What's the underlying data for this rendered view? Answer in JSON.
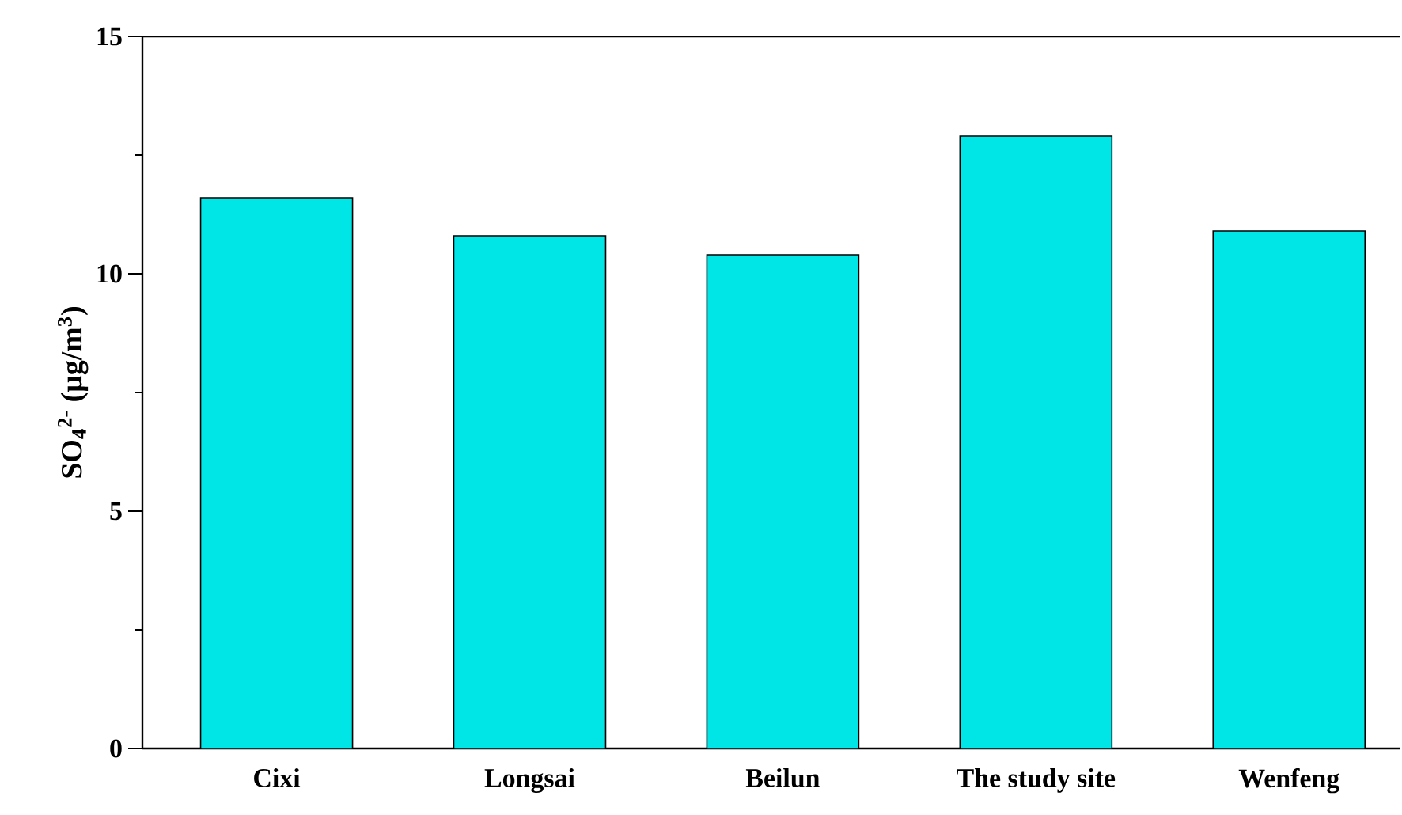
{
  "chart_data": {
    "type": "bar",
    "ylabel": "SO$_{4}$$^{2-}$ (μg/m$^{3}$)",
    "categories": [
      "Cixi",
      "Longsai",
      "Beilun",
      "The study site",
      "Wenfeng"
    ],
    "values": [
      11.6,
      10.8,
      10.4,
      12.9,
      10.9
    ],
    "color": "#00e5e5",
    "ylim": [
      0,
      15
    ],
    "yticks": [
      0,
      5,
      10,
      15
    ]
  }
}
